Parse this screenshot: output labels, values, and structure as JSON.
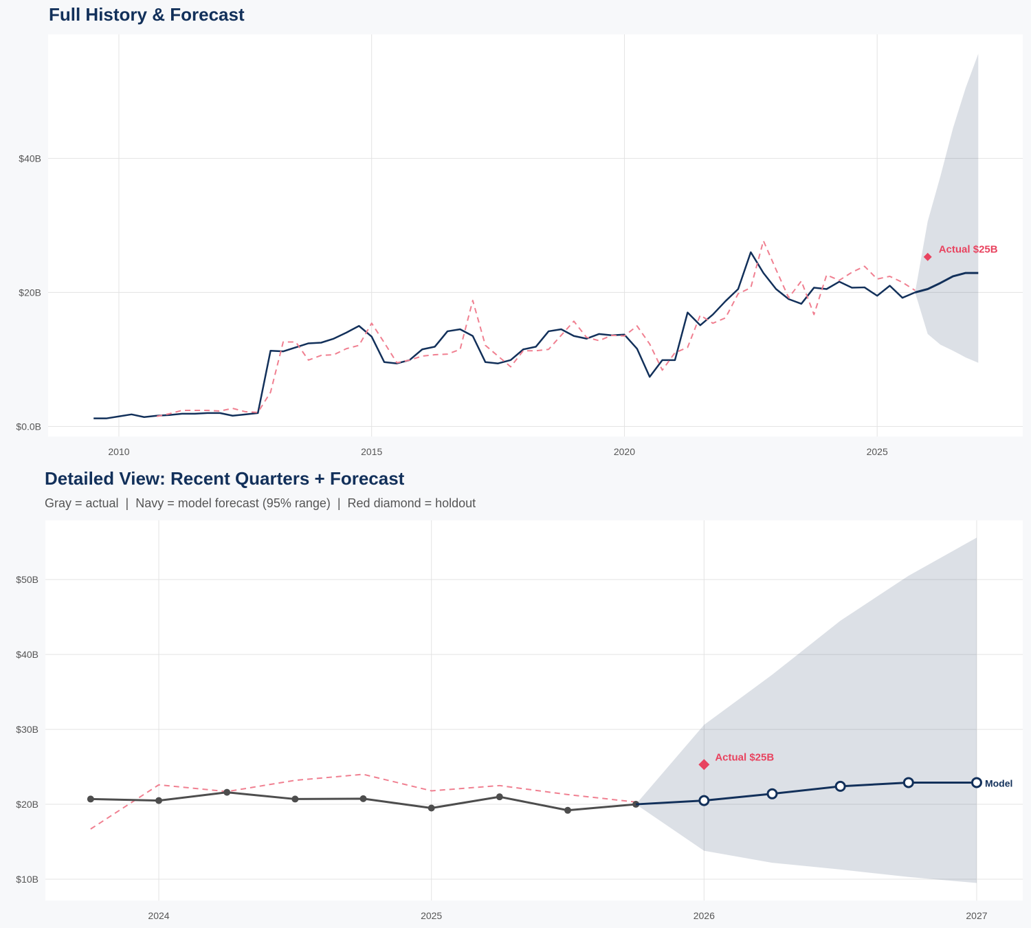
{
  "colors": {
    "navy": "#12305a",
    "red": "#e8435f",
    "red_dashed": "#f07f90",
    "gray": "#4d4d4d",
    "band": "#dadfe5",
    "grid": "#e3e3e3"
  },
  "chart_data": [
    {
      "type": "line",
      "title": "Full History & Forecast",
      "xlim": [
        2008.6,
        2027.88
      ],
      "ylim": [
        -1.5,
        58.5
      ],
      "grid": true,
      "x_ticks": [
        {
          "value": 2010,
          "label": "2010"
        },
        {
          "value": 2015,
          "label": "2015"
        },
        {
          "value": 2020,
          "label": "2020"
        },
        {
          "value": 2025,
          "label": "2025"
        }
      ],
      "y_ticks": [
        {
          "value": 0,
          "label": "$0.0B"
        },
        {
          "value": 20,
          "label": "$20B"
        },
        {
          "value": 40,
          "label": "$40B"
        }
      ],
      "series": [
        {
          "role": "actual",
          "color": "#12305a",
          "style": "solid",
          "points": [
            [
              2009.5,
              1.2
            ],
            [
              2009.75,
              1.2
            ],
            [
              2010,
              1.5
            ],
            [
              2010.25,
              1.8
            ],
            [
              2010.5,
              1.4
            ],
            [
              2010.75,
              1.6
            ],
            [
              2011,
              1.7
            ],
            [
              2011.25,
              1.9
            ],
            [
              2011.5,
              1.9
            ],
            [
              2011.75,
              2.0
            ],
            [
              2012,
              2.0
            ],
            [
              2012.25,
              1.6
            ],
            [
              2012.5,
              1.8
            ],
            [
              2012.75,
              2.0
            ],
            [
              2013,
              11.3
            ],
            [
              2013.25,
              11.2
            ],
            [
              2013.5,
              11.8
            ],
            [
              2013.75,
              12.4
            ],
            [
              2014,
              12.5
            ],
            [
              2014.25,
              13.1
            ],
            [
              2014.5,
              14.0
            ],
            [
              2014.75,
              15.0
            ],
            [
              2015,
              13.4
            ],
            [
              2015.25,
              9.6
            ],
            [
              2015.5,
              9.4
            ],
            [
              2015.75,
              9.9
            ],
            [
              2016,
              11.5
            ],
            [
              2016.25,
              11.9
            ],
            [
              2016.5,
              14.2
            ],
            [
              2016.75,
              14.5
            ],
            [
              2017,
              13.5
            ],
            [
              2017.25,
              9.6
            ],
            [
              2017.5,
              9.4
            ],
            [
              2017.75,
              9.9
            ],
            [
              2018,
              11.5
            ],
            [
              2018.25,
              11.9
            ],
            [
              2018.5,
              14.2
            ],
            [
              2018.75,
              14.5
            ],
            [
              2019,
              13.5
            ],
            [
              2019.25,
              13.1
            ],
            [
              2019.5,
              13.8
            ],
            [
              2019.75,
              13.6
            ],
            [
              2020,
              13.7
            ],
            [
              2020.25,
              11.6
            ],
            [
              2020.5,
              7.4
            ],
            [
              2020.75,
              9.9
            ],
            [
              2021,
              9.9
            ],
            [
              2021.25,
              17.0
            ],
            [
              2021.5,
              15.1
            ],
            [
              2021.75,
              16.7
            ],
            [
              2022,
              18.7
            ],
            [
              2022.25,
              20.5
            ],
            [
              2022.5,
              26.0
            ],
            [
              2022.75,
              22.9
            ],
            [
              2023,
              20.5
            ],
            [
              2023.25,
              19.0
            ],
            [
              2023.5,
              18.3
            ],
            [
              2023.75,
              20.7
            ],
            [
              2024,
              20.5
            ],
            [
              2024.25,
              21.6
            ],
            [
              2024.5,
              20.7
            ],
            [
              2024.75,
              20.75
            ],
            [
              2025,
              19.5
            ],
            [
              2025.25,
              21.0
            ],
            [
              2025.5,
              19.2
            ],
            [
              2025.75,
              20.0
            ]
          ]
        },
        {
          "role": "model-fit",
          "color": "#f07f90",
          "style": "dashed",
          "points": [
            [
              2010.75,
              1.5
            ],
            [
              2011,
              1.9
            ],
            [
              2011.25,
              2.4
            ],
            [
              2011.5,
              2.4
            ],
            [
              2011.75,
              2.4
            ],
            [
              2012,
              2.3
            ],
            [
              2012.25,
              2.7
            ],
            [
              2012.5,
              2.2
            ],
            [
              2012.75,
              2.1
            ],
            [
              2013,
              5.1
            ],
            [
              2013.25,
              12.6
            ],
            [
              2013.5,
              12.6
            ],
            [
              2013.75,
              9.9
            ],
            [
              2014,
              10.6
            ],
            [
              2014.25,
              10.7
            ],
            [
              2014.5,
              11.6
            ],
            [
              2014.75,
              12.1
            ],
            [
              2015,
              15.4
            ],
            [
              2015.25,
              12.5
            ],
            [
              2015.5,
              9.5
            ],
            [
              2015.75,
              9.9
            ],
            [
              2016,
              10.5
            ],
            [
              2016.25,
              10.7
            ],
            [
              2016.5,
              10.8
            ],
            [
              2016.75,
              11.5
            ],
            [
              2017,
              18.8
            ],
            [
              2017.25,
              12.1
            ],
            [
              2017.5,
              10.5
            ],
            [
              2017.75,
              8.9
            ],
            [
              2018,
              11.3
            ],
            [
              2018.25,
              11.3
            ],
            [
              2018.5,
              11.5
            ],
            [
              2018.75,
              13.6
            ],
            [
              2019,
              15.7
            ],
            [
              2019.25,
              13.3
            ],
            [
              2019.5,
              12.8
            ],
            [
              2019.75,
              13.6
            ],
            [
              2020,
              13.5
            ],
            [
              2020.25,
              15.0
            ],
            [
              2020.5,
              12.3
            ],
            [
              2020.75,
              8.4
            ],
            [
              2021,
              11.0
            ],
            [
              2021.25,
              11.8
            ],
            [
              2021.5,
              16.6
            ],
            [
              2021.75,
              15.4
            ],
            [
              2022,
              16.2
            ],
            [
              2022.25,
              19.8
            ],
            [
              2022.5,
              20.7
            ],
            [
              2022.75,
              27.7
            ],
            [
              2023,
              23.4
            ],
            [
              2023.25,
              19.2
            ],
            [
              2023.5,
              21.7
            ],
            [
              2023.75,
              16.7
            ],
            [
              2024,
              22.6
            ],
            [
              2024.25,
              21.8
            ],
            [
              2024.5,
              23.0
            ],
            [
              2024.75,
              23.9
            ],
            [
              2025,
              22.0
            ],
            [
              2025.25,
              22.4
            ],
            [
              2025.5,
              21.5
            ],
            [
              2025.75,
              20.3
            ]
          ]
        },
        {
          "role": "forecast",
          "color": "#12305a",
          "style": "solid",
          "points": [
            [
              2025.75,
              20.0
            ],
            [
              2026,
              20.5
            ],
            [
              2026.25,
              21.4
            ],
            [
              2026.5,
              22.4
            ],
            [
              2026.75,
              22.9
            ],
            [
              2027,
              22.9
            ]
          ]
        }
      ],
      "band": {
        "label": "95% range",
        "x": [
          2025.75,
          2026,
          2026.25,
          2026.5,
          2026.75,
          2027
        ],
        "upper": [
          20.0,
          30.6,
          37.3,
          44.5,
          50.5,
          55.6
        ],
        "lower": [
          20.0,
          13.8,
          12.2,
          11.3,
          10.3,
          9.5
        ]
      },
      "holdout": {
        "x": 2026,
        "y": 25.3,
        "label": "Actual $25B"
      }
    },
    {
      "type": "line",
      "title": "Detailed View: Recent Quarters + Forecast",
      "subtitle": "Gray = actual  |  Navy = model forecast (95% range)  |  Red diamond = holdout",
      "xlim": [
        2023.584,
        2027.169
      ],
      "ylim": [
        7.16,
        57.9
      ],
      "grid": true,
      "x_ticks": [
        {
          "value": 2024,
          "label": "2024"
        },
        {
          "value": 2025,
          "label": "2025"
        },
        {
          "value": 2026,
          "label": "2026"
        },
        {
          "value": 2027,
          "label": "2027"
        }
      ],
      "y_ticks": [
        {
          "value": 10,
          "label": "$10B"
        },
        {
          "value": 20,
          "label": "$20B"
        },
        {
          "value": 30,
          "label": "$30B"
        },
        {
          "value": 40,
          "label": "$40B"
        },
        {
          "value": 50,
          "label": "$50B"
        }
      ],
      "series": [
        {
          "role": "model-fit",
          "color": "#f07f90",
          "style": "dashed",
          "points": [
            [
              2023.75,
              16.7
            ],
            [
              2024,
              22.6
            ],
            [
              2024.25,
              21.7
            ],
            [
              2024.5,
              23.2
            ],
            [
              2024.75,
              24.0
            ],
            [
              2025,
              21.8
            ],
            [
              2025.25,
              22.5
            ],
            [
              2025.5,
              21.3
            ],
            [
              2025.75,
              20.3
            ]
          ]
        },
        {
          "role": "actual",
          "color": "#4d4d4d",
          "style": "solid",
          "markers": "filled",
          "points": [
            [
              2023.75,
              20.7
            ],
            [
              2024,
              20.5
            ],
            [
              2024.25,
              21.6
            ],
            [
              2024.5,
              20.7
            ],
            [
              2024.75,
              20.75
            ],
            [
              2025,
              19.5
            ],
            [
              2025.25,
              21.0
            ],
            [
              2025.5,
              19.2
            ],
            [
              2025.75,
              20.0
            ]
          ]
        },
        {
          "role": "forecast",
          "name": "Model",
          "color": "#12305a",
          "style": "solid",
          "markers": "open",
          "points": [
            [
              2025.75,
              20.0
            ],
            [
              2026,
              20.5
            ],
            [
              2026.25,
              21.4
            ],
            [
              2026.5,
              22.4
            ],
            [
              2026.75,
              22.9
            ],
            [
              2027,
              22.9
            ]
          ]
        }
      ],
      "band": {
        "label": "95% range",
        "x": [
          2025.75,
          2026,
          2026.25,
          2026.5,
          2026.75,
          2027
        ],
        "upper": [
          20.0,
          30.6,
          37.3,
          44.5,
          50.5,
          55.6
        ],
        "lower": [
          20.0,
          13.8,
          12.2,
          11.3,
          10.3,
          9.5
        ]
      },
      "holdout": {
        "x": 2026,
        "y": 25.3,
        "label": "Actual $25B"
      },
      "end_label": "Model"
    }
  ]
}
